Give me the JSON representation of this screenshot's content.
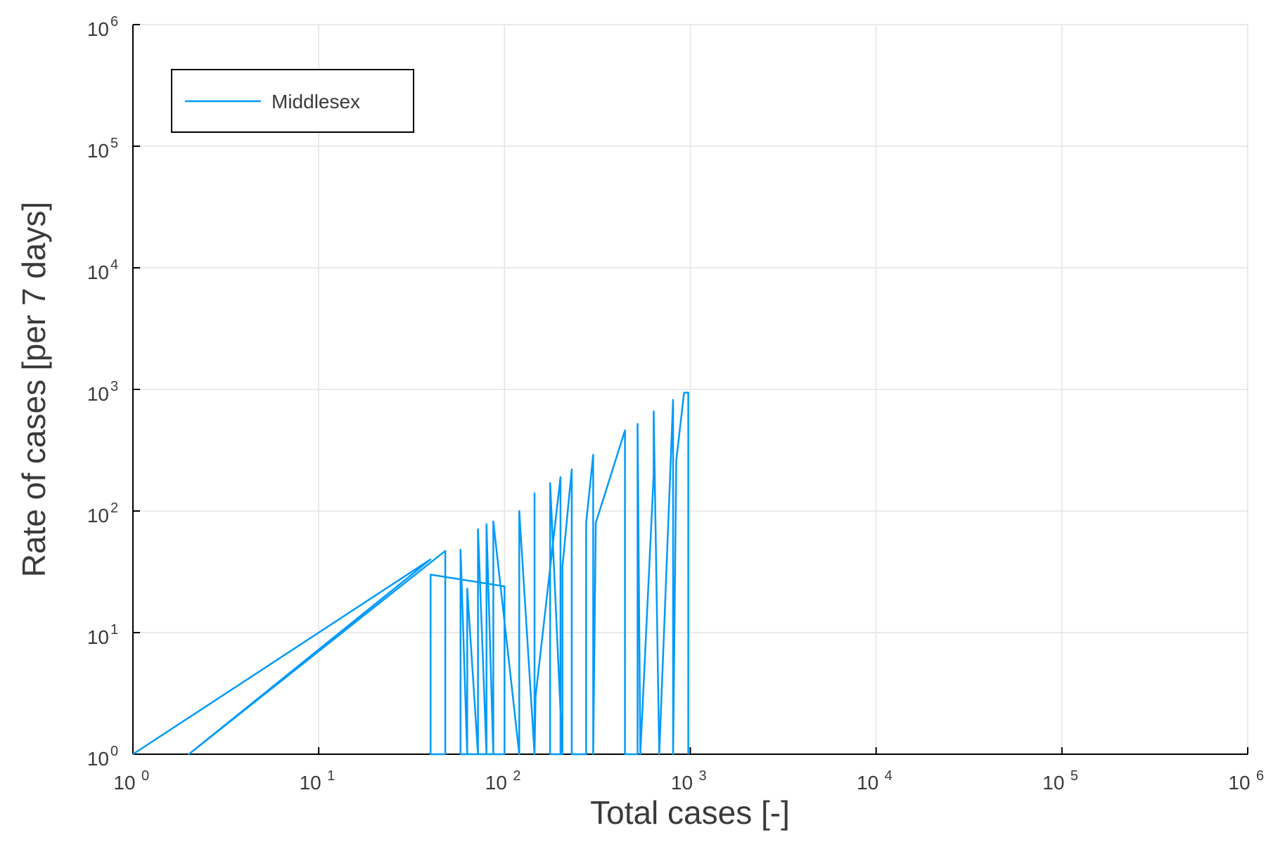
{
  "chart_data": {
    "type": "line",
    "xlabel": "Total cases [-]",
    "ylabel": "Rate of cases [per 7 days]",
    "x_scale": "log10",
    "y_scale": "log10",
    "xlim": [
      1,
      1000000
    ],
    "ylim": [
      1,
      1000000
    ],
    "x_ticks": [
      {
        "base": "10",
        "exp": "0"
      },
      {
        "base": "10",
        "exp": "1"
      },
      {
        "base": "10",
        "exp": "2"
      },
      {
        "base": "10",
        "exp": "3"
      },
      {
        "base": "10",
        "exp": "4"
      },
      {
        "base": "10",
        "exp": "5"
      },
      {
        "base": "10",
        "exp": "6"
      }
    ],
    "y_ticks": [
      {
        "base": "10",
        "exp": "0"
      },
      {
        "base": "10",
        "exp": "1"
      },
      {
        "base": "10",
        "exp": "2"
      },
      {
        "base": "10",
        "exp": "3"
      },
      {
        "base": "10",
        "exp": "4"
      },
      {
        "base": "10",
        "exp": "5"
      },
      {
        "base": "10",
        "exp": "6"
      }
    ],
    "grid": true,
    "legend_position": "top-left",
    "series": [
      {
        "name": "Middlesex",
        "color": "#009af9",
        "x": [
          1,
          40,
          2,
          48,
          48,
          40,
          40,
          100,
          100,
          58,
          58,
          63,
          63,
          72,
          72,
          80,
          80,
          87,
          87,
          120,
          120,
          145,
          145,
          145,
          147,
          200,
          200,
          176,
          176,
          205,
          205,
          230,
          230,
          275,
          275,
          300,
          300,
          310,
          445,
          445,
          520,
          520,
          538,
          538,
          635,
          635,
          680,
          680,
          808,
          808,
          840,
          840,
          925,
          975,
          975
        ],
        "y": [
          1,
          40,
          1,
          47,
          1,
          1,
          30,
          24,
          1,
          1,
          48,
          1,
          23,
          1,
          71,
          1,
          78,
          1,
          82,
          1,
          100,
          1,
          140,
          1,
          3,
          190,
          1,
          1,
          170,
          1,
          35,
          220,
          1,
          1,
          80,
          290,
          1,
          80,
          460,
          1,
          1,
          520,
          1,
          1,
          200,
          660,
          1,
          1,
          820,
          1,
          260,
          260,
          940,
          940,
          1
        ]
      }
    ]
  }
}
